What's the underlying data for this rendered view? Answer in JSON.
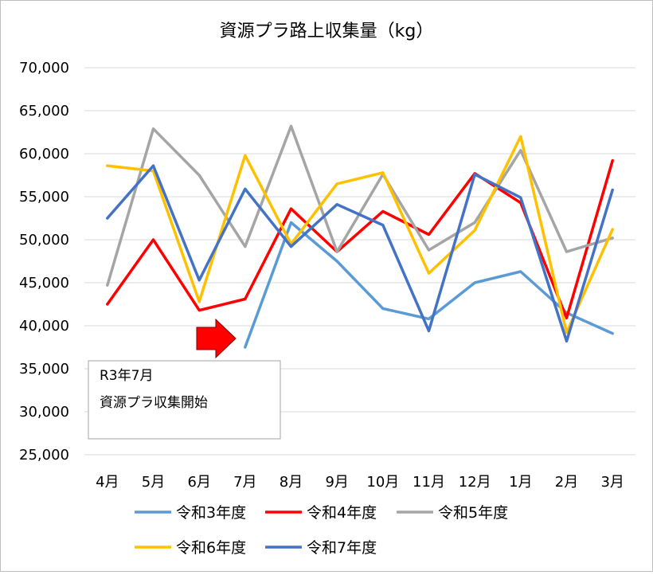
{
  "chart_data": {
    "type": "line",
    "title": "資源プラ路上収集量（kg）",
    "xlabel": "",
    "ylabel": "",
    "categories": [
      "4月",
      "5月",
      "6月",
      "7月",
      "8月",
      "9月",
      "10月",
      "11月",
      "12月",
      "1月",
      "2月",
      "3月"
    ],
    "ylim": [
      25000,
      70000
    ],
    "yticks": [
      70000,
      65000,
      60000,
      55000,
      50000,
      45000,
      40000,
      35000,
      30000,
      25000
    ],
    "ytick_labels": [
      "70,000",
      "65,000",
      "60,000",
      "55,000",
      "50,000",
      "45,000",
      "40,000",
      "35,000",
      "30,000",
      "25,000"
    ],
    "grid": true,
    "legend_position": "bottom",
    "series": [
      {
        "name": "令和3年度",
        "color": "#5b9bd5",
        "values": [
          null,
          null,
          null,
          37500,
          52000,
          47500,
          42000,
          40800,
          45000,
          46300,
          41500,
          39100
        ]
      },
      {
        "name": "令和4年度",
        "color": "#ff0000",
        "values": [
          42500,
          50000,
          41800,
          43100,
          53600,
          48600,
          53300,
          50600,
          57700,
          54300,
          40900,
          59200
        ]
      },
      {
        "name": "令和5年度",
        "color": "#a5a5a5",
        "values": [
          44700,
          62900,
          57500,
          49200,
          63200,
          48600,
          57600,
          48800,
          52000,
          60400,
          48600,
          50200
        ]
      },
      {
        "name": "令和6年度",
        "color": "#ffc000",
        "values": [
          58600,
          58000,
          42800,
          59800,
          49500,
          56500,
          57800,
          46100,
          51100,
          62000,
          39200,
          51200
        ]
      },
      {
        "name": "令和7年度",
        "color": "#4472c4",
        "values": [
          52500,
          58600,
          45300,
          55900,
          49200,
          54100,
          51700,
          39400,
          57600,
          54900,
          38200,
          55800
        ]
      }
    ],
    "annotation": {
      "lines": [
        "R3年7月",
        "資源プラ収集開始"
      ],
      "arrow_color": "#ff0000",
      "arrow_target_category": "7月"
    }
  }
}
